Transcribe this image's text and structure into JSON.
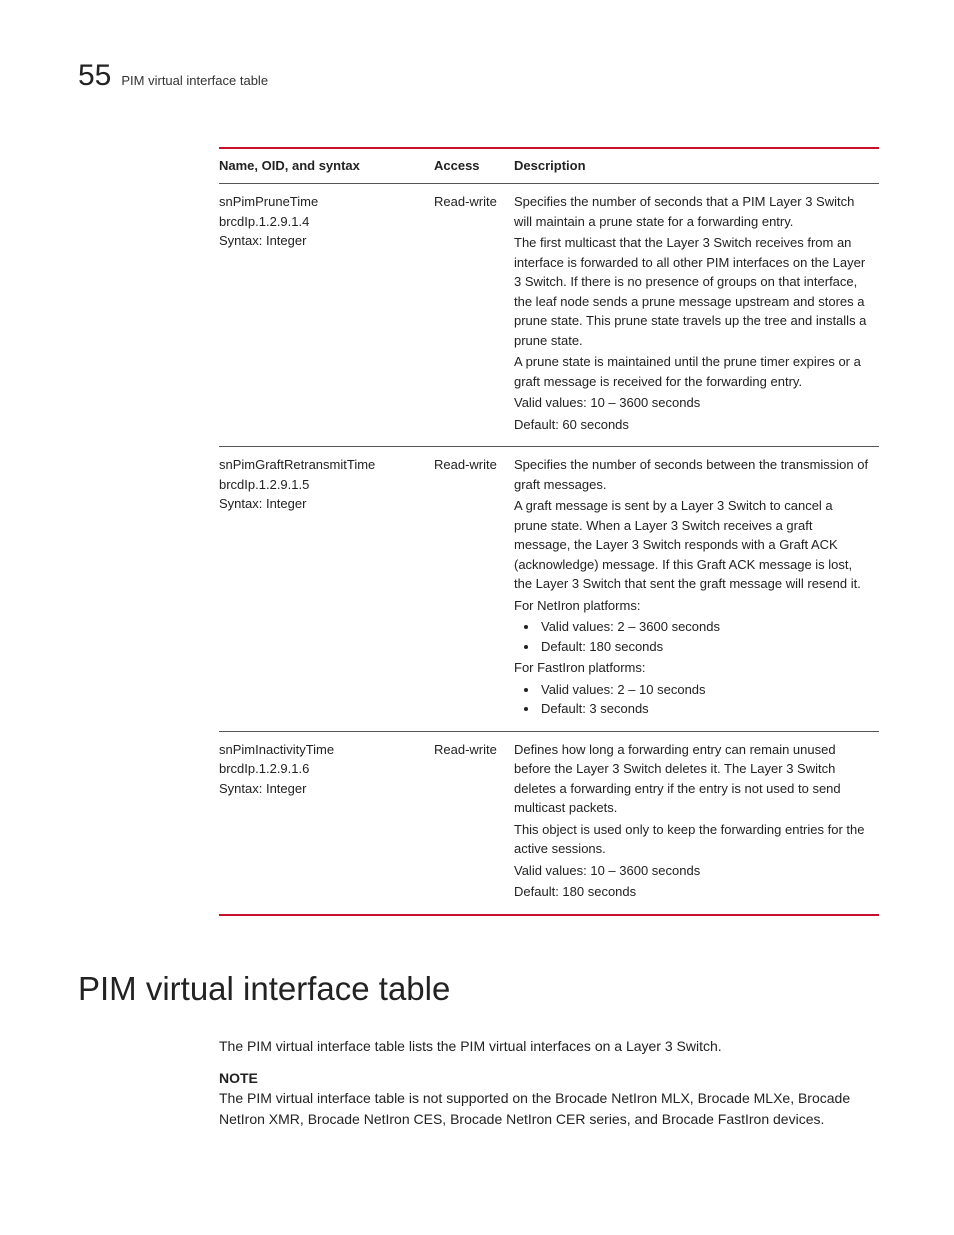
{
  "header": {
    "chapter_number": "55",
    "title": "PIM virtual interface table"
  },
  "table": {
    "headers": {
      "name": "Name, OID, and syntax",
      "access": "Access",
      "description": "Description"
    },
    "rows": [
      {
        "name_l1": "snPimPruneTime",
        "name_l2": "brcdIp.1.2.9.1.4",
        "name_l3": "Syntax: Integer",
        "access": "Read-write",
        "d_p1": "Specifies the number of seconds that a PIM Layer 3 Switch will maintain a prune state for a forwarding entry.",
        "d_p2": "The first multicast that the Layer 3 Switch receives from an interface is forwarded to all other PIM interfaces on the Layer 3 Switch. If there is no presence of groups on that interface, the leaf node sends a prune message upstream and stores a prune state. This prune state travels up the tree and installs a prune state.",
        "d_p3": "A prune state is maintained until the prune timer expires or a graft message is received for the forwarding entry.",
        "d_p4": "Valid values: 10 – 3600 seconds",
        "d_p5": "Default: 60 seconds"
      },
      {
        "name_l1": "snPimGraftRetransmitTime",
        "name_l2": "brcdIp.1.2.9.1.5",
        "name_l3": "Syntax: Integer",
        "access": "Read-write",
        "d_p1": "Specifies the number of seconds between the transmission of graft messages.",
        "d_p2": "A graft message is sent by a Layer 3 Switch to cancel a prune state. When a Layer 3 Switch receives a graft message, the Layer 3 Switch responds with a Graft ACK (acknowledge) message. If this Graft ACK message is lost, the Layer 3 Switch that sent the graft message will resend it.",
        "d_net_label": "For NetIron platforms:",
        "d_net_b1": "Valid values: 2 – 3600 seconds",
        "d_net_b2": "Default: 180 seconds",
        "d_fast_label": "For FastIron platforms:",
        "d_fast_b1": "Valid values: 2 – 10 seconds",
        "d_fast_b2": "Default: 3 seconds"
      },
      {
        "name_l1": "snPimInactivityTime",
        "name_l2": "brcdIp.1.2.9.1.6",
        "name_l3": "Syntax: Integer",
        "access": "Read-write",
        "d_p1": "Defines how long a forwarding entry can remain unused before the Layer 3 Switch deletes it. The Layer 3 Switch deletes a forwarding entry if the entry is not used to send multicast packets.",
        "d_p2": "This object is used only to keep the forwarding entries for the active sessions.",
        "d_p3": "Valid values: 10 – 3600 seconds",
        "d_p4": "Default: 180 seconds"
      }
    ]
  },
  "section": {
    "heading": "PIM virtual interface table",
    "intro": "The PIM virtual interface table lists the PIM virtual interfaces on a Layer 3 Switch.",
    "note_label": "NOTE",
    "note_text": "The PIM virtual interface table is not supported on the Brocade NetIron MLX, Brocade MLXe, Brocade NetIron XMR, Brocade NetIron CES, Brocade NetIron CER series, and Brocade FastIron devices."
  }
}
